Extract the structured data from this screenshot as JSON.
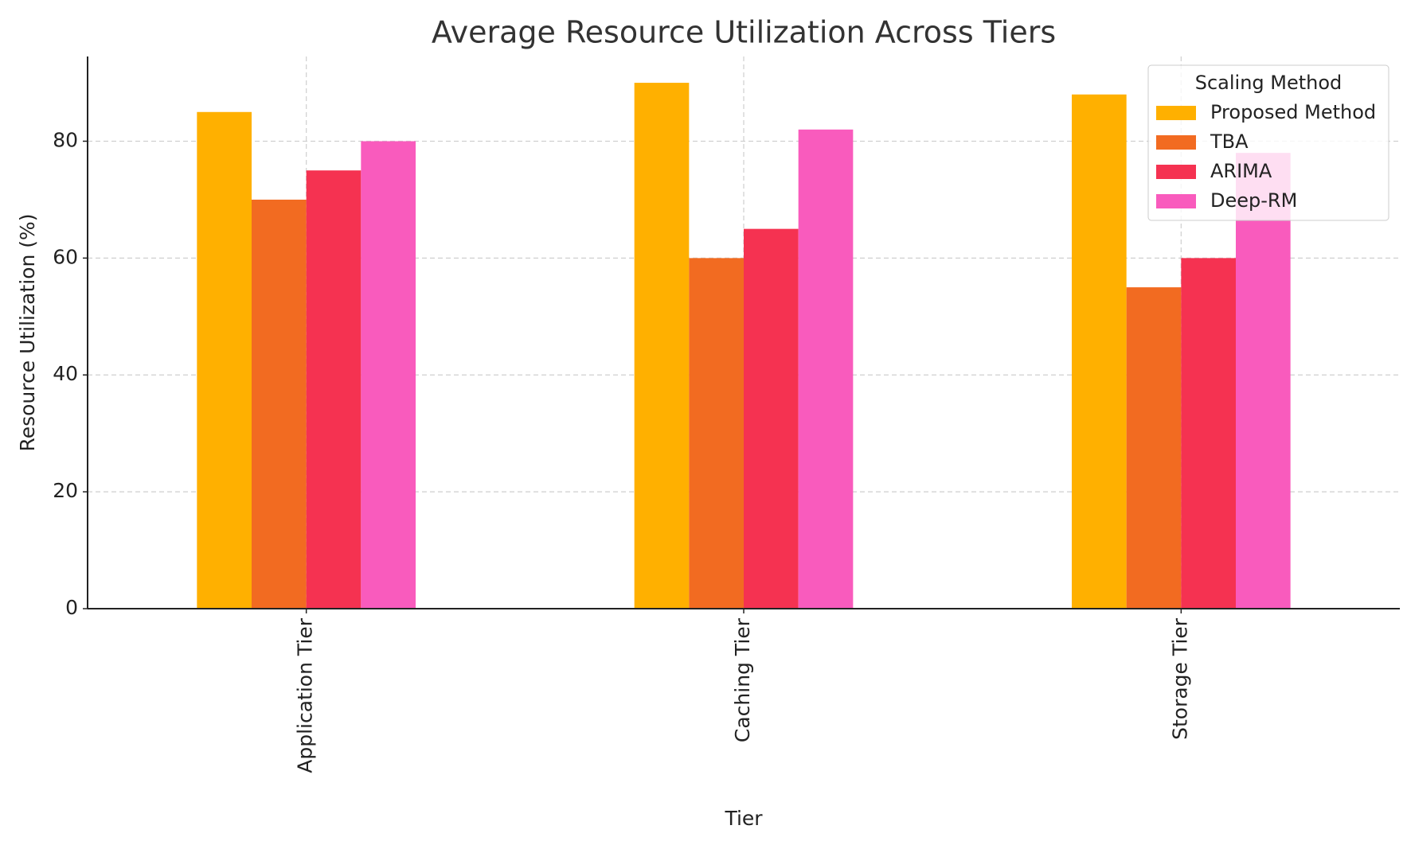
{
  "chart_data": {
    "type": "bar",
    "title": "Average Resource Utilization Across Tiers",
    "x_label": "Tier",
    "y_label": "Resource Utilization (%)",
    "categories": [
      "Application Tier",
      "Caching Tier",
      "Storage Tier"
    ],
    "series": [
      {
        "name": "Proposed Method",
        "color": "#ffb000",
        "values": [
          85,
          90,
          88
        ]
      },
      {
        "name": "TBA",
        "color": "#f26b21",
        "values": [
          70,
          60,
          55
        ]
      },
      {
        "name": "ARIMA",
        "color": "#f53251",
        "values": [
          75,
          65,
          60
        ]
      },
      {
        "name": "Deep-RM",
        "color": "#f95bbd",
        "values": [
          80,
          82,
          78
        ]
      }
    ],
    "ylim": [
      0,
      94.5
    ],
    "yticks": [
      0,
      20,
      40,
      60,
      80
    ],
    "grid": true,
    "legend_title": "Scaling Method",
    "legend_position": "upper-right"
  }
}
